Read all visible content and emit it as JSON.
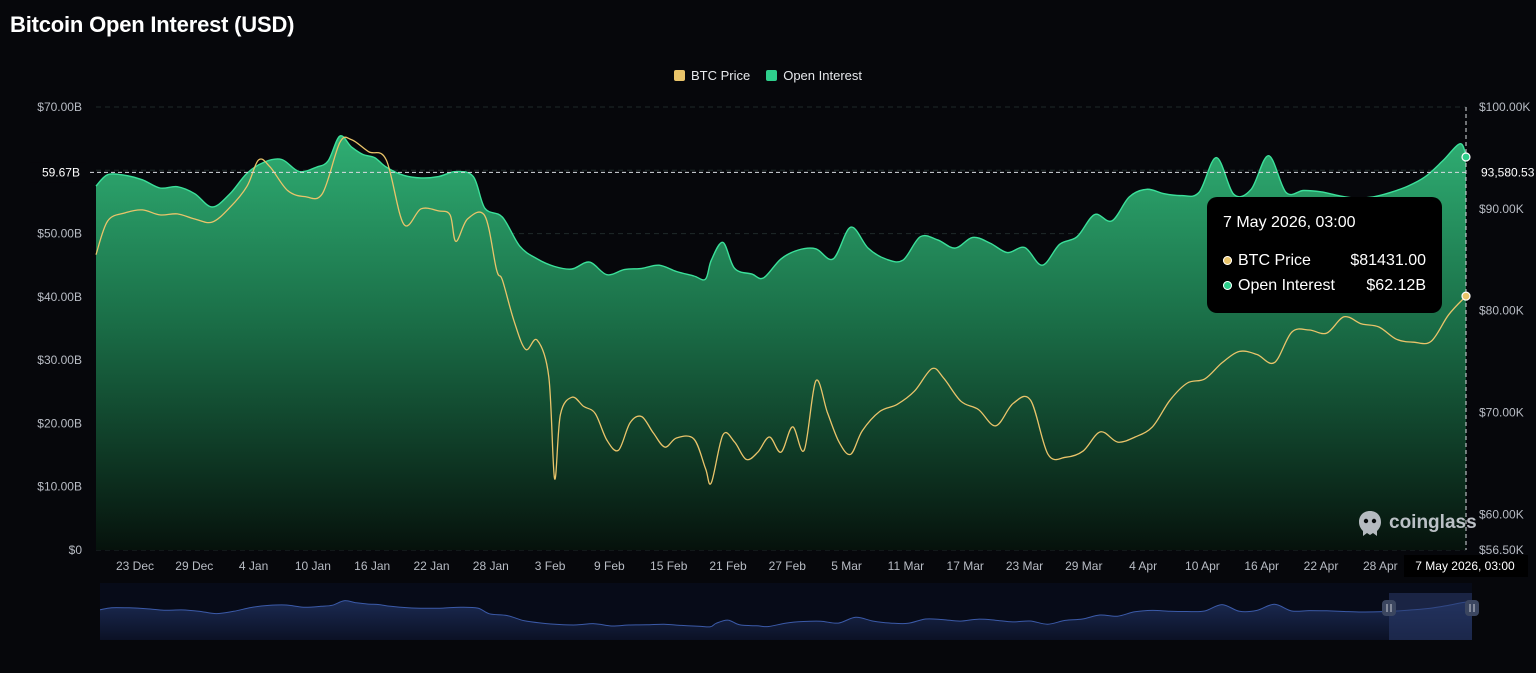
{
  "title": "Bitcoin Open Interest (USD)",
  "legend": [
    {
      "label": "BTC Price",
      "color": "#e9c46a"
    },
    {
      "label": "Open Interest",
      "color": "#2ecf8c"
    }
  ],
  "crosshair": {
    "left_value": "59.67B",
    "right_value": "93,580.53",
    "date_label": "7 May 2026, 03:00"
  },
  "tooltip": {
    "date": "7 May 2026, 03:00",
    "rows": [
      {
        "label": "BTC Price",
        "value": "$81431.00",
        "color": "#e9c46a"
      },
      {
        "label": "Open Interest",
        "value": "$62.12B",
        "color": "#2ecf8c"
      }
    ]
  },
  "watermark": "coinglass",
  "chart_data": {
    "type": "area",
    "title": "Bitcoin Open Interest (USD)",
    "x_tick_labels": [
      "23 Dec",
      "29 Dec",
      "4 Jan",
      "10 Jan",
      "16 Jan",
      "22 Jan",
      "28 Jan",
      "3 Feb",
      "9 Feb",
      "15 Feb",
      "21 Feb",
      "27 Feb",
      "5 Mar",
      "11 Mar",
      "17 Mar",
      "23 Mar",
      "29 Mar",
      "4 Apr",
      "10 Apr",
      "16 Apr",
      "22 Apr",
      "28 Apr"
    ],
    "y_left": {
      "ticks": [
        "$0",
        "$10.00B",
        "$20.00B",
        "$30.00B",
        "$40.00B",
        "$50.00B",
        "$60.00B",
        "$70.00B"
      ],
      "range": [
        0,
        70
      ]
    },
    "y_right": {
      "ticks": [
        "$56.50K",
        "$60.00K",
        "$70.00K",
        "$80.00K",
        "$90.00K",
        "$100.00K"
      ],
      "range": [
        56500,
        100000
      ]
    },
    "x_range_days": [
      0,
      137
    ],
    "grid": true,
    "legend_position": "top-center",
    "series": [
      {
        "name": "Open Interest",
        "axis": "left",
        "unit": "B USD",
        "color": "#2ecf8c",
        "points": [
          [
            0,
            57.5
          ],
          [
            2,
            59.3
          ],
          [
            5,
            59.2
          ],
          [
            8,
            58.5
          ],
          [
            11,
            57.2
          ],
          [
            14,
            57.4
          ],
          [
            17,
            56.3
          ],
          [
            20,
            54.2
          ],
          [
            23,
            56.2
          ],
          [
            26,
            59.5
          ],
          [
            29,
            61.3
          ],
          [
            32,
            61.7
          ],
          [
            35,
            59.8
          ],
          [
            38,
            60.5
          ],
          [
            40,
            61.5
          ],
          [
            42,
            65.4
          ],
          [
            44,
            63.7
          ],
          [
            46,
            62.5
          ],
          [
            48,
            62.0
          ],
          [
            50,
            60.5
          ],
          [
            53,
            59.2
          ],
          [
            56,
            58.8
          ],
          [
            59,
            59.0
          ],
          [
            62,
            59.8
          ],
          [
            65,
            59.0
          ],
          [
            67,
            54.0
          ],
          [
            70,
            52.6
          ],
          [
            73,
            48.0
          ],
          [
            76,
            46.0
          ],
          [
            79,
            44.8
          ],
          [
            82,
            44.4
          ],
          [
            85,
            45.5
          ],
          [
            88,
            43.5
          ],
          [
            91,
            44.3
          ],
          [
            94,
            44.5
          ],
          [
            97,
            45.0
          ],
          [
            100,
            44.0
          ],
          [
            103,
            43.3
          ],
          [
            105,
            42.8
          ],
          [
            106,
            45.8
          ],
          [
            108,
            48.6
          ],
          [
            110,
            44.5
          ],
          [
            113,
            43.6
          ],
          [
            115,
            43.0
          ],
          [
            118,
            46.0
          ],
          [
            121,
            47.4
          ],
          [
            124,
            47.6
          ],
          [
            127,
            46.0
          ],
          [
            130,
            51.0
          ],
          [
            133,
            47.7
          ],
          [
            136,
            46.0
          ],
          [
            139,
            45.8
          ],
          [
            142,
            49.5
          ],
          [
            145,
            49.0
          ],
          [
            148,
            47.7
          ],
          [
            151,
            49.4
          ],
          [
            154,
            48.5
          ],
          [
            157,
            47.0
          ],
          [
            160,
            47.8
          ],
          [
            163,
            45.0
          ],
          [
            166,
            48.3
          ],
          [
            169,
            49.5
          ],
          [
            172,
            53.0
          ],
          [
            175,
            52.0
          ],
          [
            178,
            55.8
          ],
          [
            181,
            57.0
          ],
          [
            184,
            56.3
          ],
          [
            187,
            56.0
          ],
          [
            190,
            56.5
          ],
          [
            193,
            62.0
          ],
          [
            196,
            56.2
          ],
          [
            199,
            57.0
          ],
          [
            202,
            62.3
          ],
          [
            205,
            56.5
          ],
          [
            208,
            56.8
          ],
          [
            211,
            56.6
          ],
          [
            214,
            56.0
          ],
          [
            217,
            55.6
          ],
          [
            220,
            55.8
          ],
          [
            223,
            56.5
          ],
          [
            226,
            57.5
          ],
          [
            229,
            59.0
          ],
          [
            232,
            61.5
          ],
          [
            235,
            64.2
          ],
          [
            236,
            62.1
          ]
        ]
      },
      {
        "name": "BTC Price",
        "axis": "right",
        "unit": "USD",
        "color": "#e9c46a",
        "points": [
          [
            0,
            85500
          ],
          [
            2,
            88800
          ],
          [
            5,
            89600
          ],
          [
            8,
            89900
          ],
          [
            11,
            89400
          ],
          [
            14,
            89500
          ],
          [
            17,
            89000
          ],
          [
            20,
            88700
          ],
          [
            23,
            90100
          ],
          [
            26,
            92200
          ],
          [
            28,
            94800
          ],
          [
            30,
            94100
          ],
          [
            33,
            91800
          ],
          [
            36,
            91200
          ],
          [
            39,
            91500
          ],
          [
            42,
            96500
          ],
          [
            44,
            96800
          ],
          [
            47,
            95600
          ],
          [
            50,
            94800
          ],
          [
            53,
            88500
          ],
          [
            56,
            90000
          ],
          [
            59,
            89800
          ],
          [
            61,
            89400
          ],
          [
            62,
            86800
          ],
          [
            64,
            89000
          ],
          [
            67,
            89300
          ],
          [
            69,
            84000
          ],
          [
            70,
            83000
          ],
          [
            72,
            79000
          ],
          [
            74,
            76200
          ],
          [
            76,
            77100
          ],
          [
            78,
            73500
          ],
          [
            79,
            63500
          ],
          [
            80,
            69800
          ],
          [
            82,
            71500
          ],
          [
            84,
            70600
          ],
          [
            86,
            69900
          ],
          [
            88,
            67300
          ],
          [
            90,
            66300
          ],
          [
            92,
            69000
          ],
          [
            94,
            69600
          ],
          [
            96,
            68000
          ],
          [
            98,
            66600
          ],
          [
            100,
            67500
          ],
          [
            103,
            67400
          ],
          [
            105,
            64500
          ],
          [
            106,
            63100
          ],
          [
            108,
            67800
          ],
          [
            110,
            67100
          ],
          [
            112,
            65400
          ],
          [
            114,
            66100
          ],
          [
            116,
            67600
          ],
          [
            118,
            66100
          ],
          [
            120,
            68600
          ],
          [
            122,
            66300
          ],
          [
            124,
            73100
          ],
          [
            126,
            70000
          ],
          [
            128,
            67100
          ],
          [
            130,
            65900
          ],
          [
            132,
            68200
          ],
          [
            135,
            70100
          ],
          [
            138,
            70800
          ],
          [
            141,
            72100
          ],
          [
            144,
            74300
          ],
          [
            146,
            73400
          ],
          [
            149,
            71100
          ],
          [
            152,
            70300
          ],
          [
            155,
            68700
          ],
          [
            158,
            70900
          ],
          [
            161,
            71200
          ],
          [
            164,
            65900
          ],
          [
            167,
            65600
          ],
          [
            170,
            66200
          ],
          [
            173,
            68100
          ],
          [
            176,
            67100
          ],
          [
            179,
            67600
          ],
          [
            182,
            68600
          ],
          [
            185,
            71200
          ],
          [
            188,
            72900
          ],
          [
            191,
            73300
          ],
          [
            194,
            74900
          ],
          [
            197,
            76000
          ],
          [
            200,
            75700
          ],
          [
            203,
            74900
          ],
          [
            206,
            77900
          ],
          [
            209,
            78100
          ],
          [
            212,
            77800
          ],
          [
            215,
            79400
          ],
          [
            218,
            78700
          ],
          [
            221,
            78400
          ],
          [
            224,
            77200
          ],
          [
            227,
            76900
          ],
          [
            230,
            77000
          ],
          [
            233,
            79600
          ],
          [
            236,
            81431
          ]
        ]
      }
    ]
  }
}
